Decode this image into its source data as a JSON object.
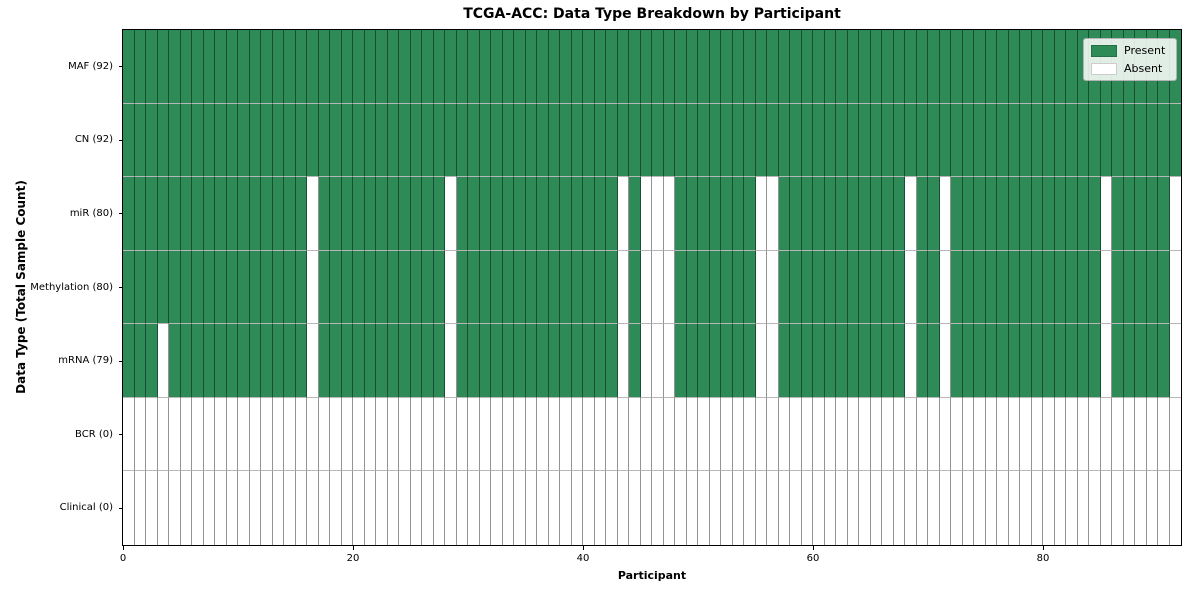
{
  "chart_data": {
    "type": "heatmap",
    "title": "TCGA-ACC: Data Type Breakdown by Participant",
    "xlabel": "Participant",
    "ylabel": "Data Type (Total Sample Count)",
    "x_ticks": [
      0,
      20,
      40,
      60,
      80
    ],
    "n_participants": 92,
    "grid": true,
    "legend_position": "upper right",
    "colors": {
      "present": "#2e8b57",
      "absent": "#ffffff",
      "cell_border": "#5a5a5a",
      "row_separator": "#b7b7b7",
      "frame": "#000000"
    },
    "legend": [
      {
        "label": "Present",
        "color": "#2e8b57"
      },
      {
        "label": "Absent",
        "color": "#ffffff"
      }
    ],
    "rows": [
      {
        "label": "MAF (92)",
        "name": "MAF",
        "present_count": 92,
        "all_absent": false,
        "absent_participants": []
      },
      {
        "label": "CN (92)",
        "name": "CN",
        "present_count": 92,
        "all_absent": false,
        "absent_participants": []
      },
      {
        "label": "miR (80)",
        "name": "miR",
        "present_count": 80,
        "all_absent": false,
        "absent_participants": [
          16,
          28,
          43,
          45,
          46,
          47,
          55,
          56,
          68,
          71,
          85,
          91
        ]
      },
      {
        "label": "Methylation (80)",
        "name": "Methylation",
        "present_count": 80,
        "all_absent": false,
        "absent_participants": [
          16,
          28,
          43,
          45,
          46,
          47,
          55,
          56,
          68,
          71,
          85,
          91
        ]
      },
      {
        "label": "mRNA (79)",
        "name": "mRNA",
        "present_count": 79,
        "all_absent": false,
        "absent_participants": [
          3,
          16,
          28,
          43,
          45,
          46,
          47,
          55,
          56,
          68,
          71,
          85,
          91
        ]
      },
      {
        "label": "BCR (0)",
        "name": "BCR",
        "present_count": 0,
        "all_absent": true,
        "absent_participants": []
      },
      {
        "label": "Clinical (0)",
        "name": "Clinical",
        "present_count": 0,
        "all_absent": true,
        "absent_participants": []
      }
    ]
  }
}
